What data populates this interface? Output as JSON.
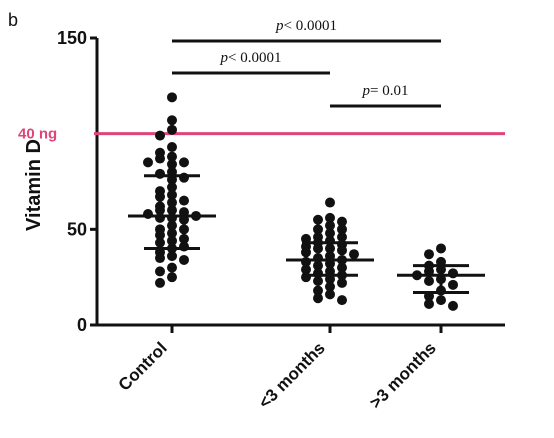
{
  "panel_label": "b",
  "chart_data": {
    "type": "scatter",
    "ylabel": "Vitamin D",
    "xlabel": "",
    "ylim": [
      0,
      150
    ],
    "yticks": [
      0,
      50,
      150
    ],
    "categories": [
      "Control",
      "<3 months",
      ">3 months"
    ],
    "series": [
      {
        "category": "Control",
        "mean": 57,
        "sd_upper": 78,
        "sd_lower": 40,
        "values": [
          119,
          107,
          102,
          99,
          93,
          90,
          88,
          87,
          85,
          85,
          84,
          80,
          79,
          77,
          76,
          72,
          70,
          68,
          67,
          65,
          64,
          62,
          60,
          60,
          59,
          58,
          57,
          56,
          56,
          55,
          52,
          50,
          50,
          48,
          47,
          45,
          44,
          43,
          41,
          40,
          38,
          36,
          35,
          34,
          30,
          28,
          25,
          22
        ]
      },
      {
        "category": "<3 months",
        "mean": 34,
        "sd_upper": 43,
        "sd_lower": 26,
        "values": [
          64,
          56,
          55,
          54,
          52,
          50,
          50,
          48,
          46,
          46,
          45,
          44,
          43,
          42,
          41,
          40,
          40,
          39,
          38,
          37,
          36,
          35,
          34,
          33,
          32,
          31,
          30,
          29,
          28,
          27,
          26,
          25,
          24,
          23,
          22,
          20,
          18,
          16,
          14,
          13
        ]
      },
      {
        "category": ">3 months",
        "mean": 26,
        "sd_upper": 31,
        "sd_lower": 17,
        "values": [
          40,
          37,
          33,
          31,
          29,
          28,
          27,
          26,
          24,
          23,
          21,
          18,
          15,
          13,
          11,
          10
        ]
      }
    ],
    "reference_line": {
      "value": 100,
      "label": "40 ng",
      "color": "#e0457a"
    },
    "significance": [
      {
        "from": 0,
        "to": 2,
        "label": "p< 0.0001",
        "level": 1
      },
      {
        "from": 0,
        "to": 1,
        "label": "p< 0.0001",
        "level": 2
      },
      {
        "from": 1,
        "to": 2,
        "label": "p= 0.01",
        "level": 3
      }
    ]
  }
}
